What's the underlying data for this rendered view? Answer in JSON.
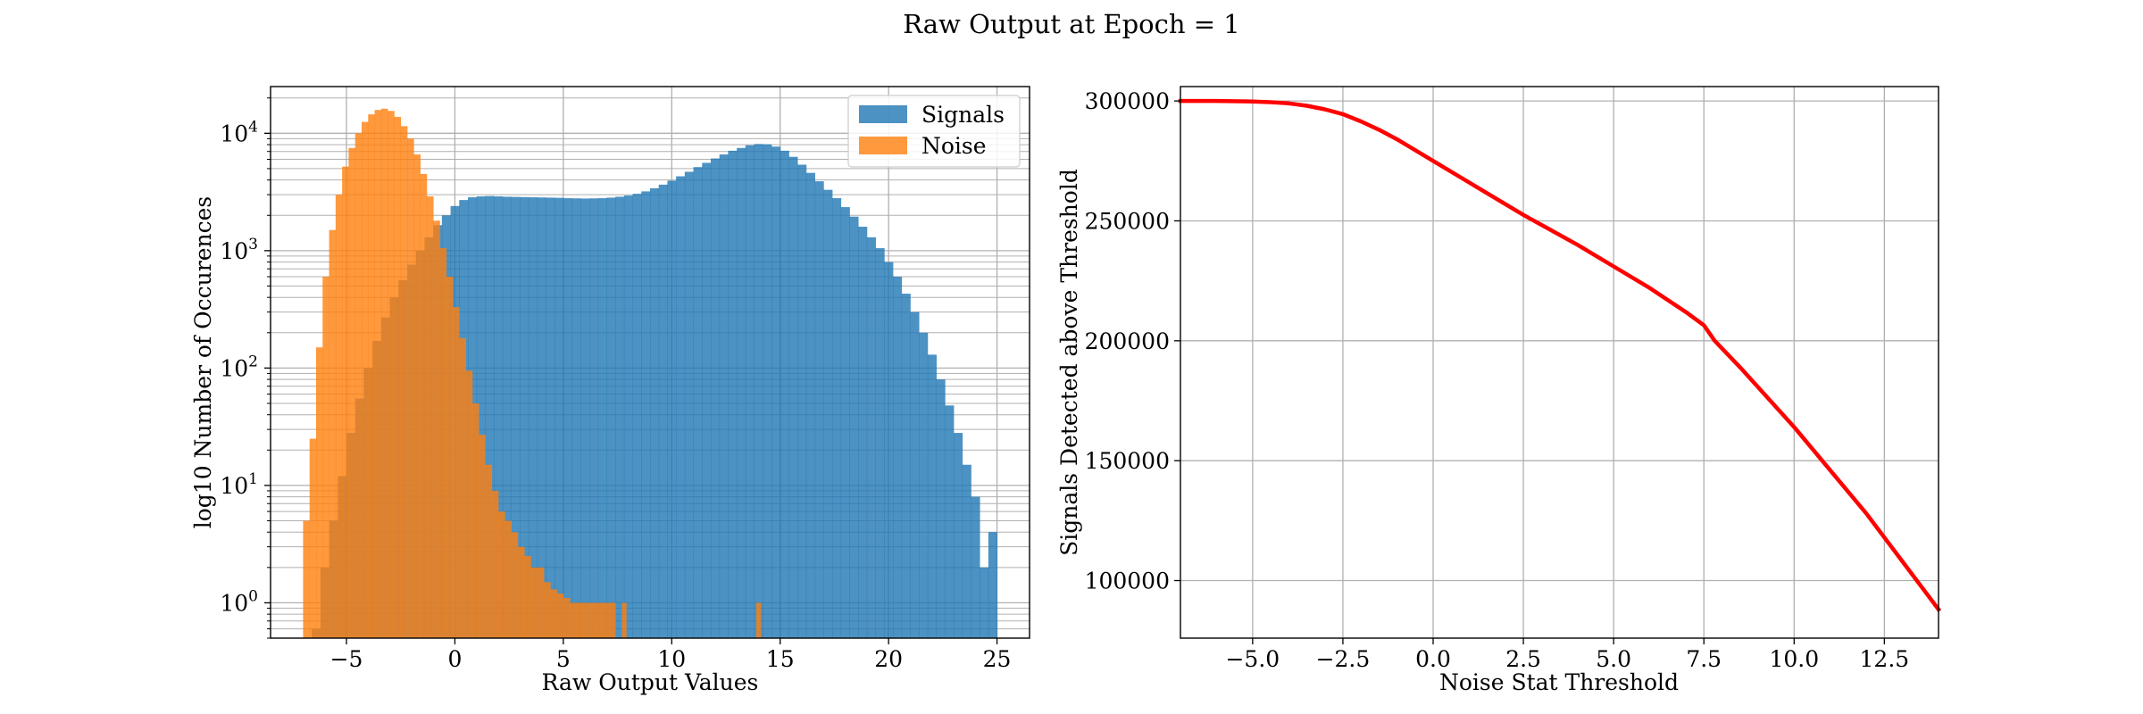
{
  "figure": {
    "title": "Raw Output at Epoch = 1"
  },
  "chart_data": [
    {
      "type": "histogram",
      "xlabel": "Raw Output Values",
      "ylabel": "log10 Number of Occurences",
      "yscale": "log",
      "xlim": [
        -8.5,
        26.5
      ],
      "ylim": [
        0.5,
        25000
      ],
      "xticks": [
        -5,
        0,
        5,
        10,
        15,
        20,
        25
      ],
      "xtick_labels": [
        "−5",
        "0",
        "5",
        "10",
        "15",
        "20",
        "25"
      ],
      "yticks": [
        1,
        10,
        100,
        1000,
        10000
      ],
      "ytick_labels": [
        [
          "10",
          "0"
        ],
        [
          "10",
          "1"
        ],
        [
          "10",
          "2"
        ],
        [
          "10",
          "3"
        ],
        [
          "10",
          "4"
        ]
      ],
      "grid": true,
      "legend": {
        "placement": "upper right"
      },
      "series": [
        {
          "name": "Signals",
          "color": "#1f77b4",
          "alpha": 0.8,
          "bins": [
            [
              -6.6,
              -6.2,
              0.6
            ],
            [
              -6.2,
              -5.8,
              2
            ],
            [
              -5.8,
              -5.4,
              5
            ],
            [
              -5.4,
              -5.0,
              12
            ],
            [
              -5.0,
              -4.6,
              28
            ],
            [
              -4.6,
              -4.2,
              55
            ],
            [
              -4.2,
              -3.8,
              100
            ],
            [
              -3.8,
              -3.4,
              170
            ],
            [
              -3.4,
              -3.0,
              270
            ],
            [
              -3.0,
              -2.6,
              400
            ],
            [
              -2.6,
              -2.2,
              560
            ],
            [
              -2.2,
              -1.8,
              760
            ],
            [
              -1.8,
              -1.4,
              1000
            ],
            [
              -1.4,
              -1.0,
              1300
            ],
            [
              -1.0,
              -0.6,
              1650
            ],
            [
              -0.6,
              -0.2,
              2000
            ],
            [
              -0.2,
              0.2,
              2400
            ],
            [
              0.2,
              0.6,
              2700
            ],
            [
              0.6,
              1.0,
              2850
            ],
            [
              1.0,
              1.4,
              2900
            ],
            [
              1.4,
              1.8,
              2920
            ],
            [
              1.8,
              2.2,
              2900
            ],
            [
              2.2,
              2.6,
              2880
            ],
            [
              2.6,
              3.0,
              2870
            ],
            [
              3.0,
              3.4,
              2860
            ],
            [
              3.4,
              3.8,
              2850
            ],
            [
              3.8,
              4.2,
              2840
            ],
            [
              4.2,
              4.6,
              2830
            ],
            [
              4.6,
              5.0,
              2820
            ],
            [
              5.0,
              5.4,
              2800
            ],
            [
              5.4,
              5.8,
              2790
            ],
            [
              5.8,
              6.2,
              2780
            ],
            [
              6.2,
              6.6,
              2790
            ],
            [
              6.6,
              7.0,
              2800
            ],
            [
              7.0,
              7.4,
              2830
            ],
            [
              7.4,
              7.8,
              2880
            ],
            [
              7.8,
              8.2,
              2950
            ],
            [
              8.2,
              8.6,
              3050
            ],
            [
              8.6,
              9.0,
              3200
            ],
            [
              9.0,
              9.4,
              3400
            ],
            [
              9.4,
              9.8,
              3650
            ],
            [
              9.8,
              10.2,
              3950
            ],
            [
              10.2,
              10.6,
              4300
            ],
            [
              10.6,
              11.0,
              4700
            ],
            [
              11.0,
              11.4,
              5150
            ],
            [
              11.4,
              11.8,
              5600
            ],
            [
              11.8,
              12.2,
              6100
            ],
            [
              12.2,
              12.6,
              6600
            ],
            [
              12.6,
              13.0,
              7100
            ],
            [
              13.0,
              13.4,
              7500
            ],
            [
              13.4,
              13.8,
              7900
            ],
            [
              13.8,
              14.2,
              8100
            ],
            [
              14.2,
              14.6,
              8050
            ],
            [
              14.6,
              15.0,
              7700
            ],
            [
              15.0,
              15.4,
              7100
            ],
            [
              15.4,
              15.8,
              6300
            ],
            [
              15.8,
              16.2,
              5400
            ],
            [
              16.2,
              16.6,
              4600
            ],
            [
              16.6,
              17.0,
              3900
            ],
            [
              17.0,
              17.4,
              3300
            ],
            [
              17.4,
              17.8,
              2800
            ],
            [
              17.8,
              18.2,
              2350
            ],
            [
              18.2,
              18.6,
              1950
            ],
            [
              18.6,
              19.0,
              1600
            ],
            [
              19.0,
              19.4,
              1300
            ],
            [
              19.4,
              19.8,
              1050
            ],
            [
              19.8,
              20.2,
              800
            ],
            [
              20.2,
              20.6,
              600
            ],
            [
              20.6,
              21.0,
              430
            ],
            [
              21.0,
              21.4,
              300
            ],
            [
              21.4,
              21.8,
              200
            ],
            [
              21.8,
              22.2,
              130
            ],
            [
              22.2,
              22.6,
              80
            ],
            [
              22.6,
              23.0,
              48
            ],
            [
              23.0,
              23.4,
              28
            ],
            [
              23.4,
              23.8,
              15
            ],
            [
              23.8,
              24.2,
              8
            ],
            [
              24.2,
              24.6,
              2
            ],
            [
              24.6,
              25.0,
              4
            ]
          ]
        },
        {
          "name": "Noise",
          "color": "#ff7f0e",
          "alpha": 0.8,
          "bins": [
            [
              -7.0,
              -6.7,
              5
            ],
            [
              -6.7,
              -6.4,
              25
            ],
            [
              -6.4,
              -6.1,
              150
            ],
            [
              -6.1,
              -5.8,
              600
            ],
            [
              -5.8,
              -5.5,
              1500
            ],
            [
              -5.5,
              -5.2,
              3000
            ],
            [
              -5.2,
              -4.9,
              5200
            ],
            [
              -4.9,
              -4.6,
              7500
            ],
            [
              -4.6,
              -4.3,
              10000
            ],
            [
              -4.3,
              -4.0,
              12500
            ],
            [
              -4.0,
              -3.7,
              14500
            ],
            [
              -3.7,
              -3.4,
              15800
            ],
            [
              -3.4,
              -3.1,
              16200
            ],
            [
              -3.1,
              -2.8,
              15500
            ],
            [
              -2.8,
              -2.5,
              13800
            ],
            [
              -2.5,
              -2.2,
              11500
            ],
            [
              -2.2,
              -1.9,
              9000
            ],
            [
              -1.9,
              -1.6,
              6600
            ],
            [
              -1.6,
              -1.3,
              4500
            ],
            [
              -1.3,
              -1.0,
              2900
            ],
            [
              -1.0,
              -0.7,
              1800
            ],
            [
              -0.7,
              -0.4,
              1050
            ],
            [
              -0.4,
              -0.1,
              600
            ],
            [
              -0.1,
              0.2,
              330
            ],
            [
              0.2,
              0.5,
              180
            ],
            [
              0.5,
              0.8,
              95
            ],
            [
              0.8,
              1.1,
              50
            ],
            [
              1.1,
              1.4,
              27
            ],
            [
              1.4,
              1.7,
              15
            ],
            [
              1.7,
              2.0,
              9
            ],
            [
              2.0,
              2.3,
              6
            ],
            [
              2.3,
              2.6,
              5
            ],
            [
              2.6,
              2.9,
              4
            ],
            [
              2.9,
              3.2,
              3
            ],
            [
              3.2,
              3.5,
              2.5
            ],
            [
              3.5,
              3.8,
              2
            ],
            [
              3.8,
              4.1,
              2
            ],
            [
              4.1,
              4.4,
              1.5
            ],
            [
              4.4,
              4.7,
              1.3
            ],
            [
              4.7,
              5.0,
              1.2
            ],
            [
              5.0,
              5.3,
              1.1
            ],
            [
              5.3,
              5.6,
              1
            ],
            [
              5.6,
              5.9,
              1
            ],
            [
              5.9,
              6.2,
              1
            ],
            [
              6.2,
              6.5,
              1
            ],
            [
              6.5,
              6.8,
              1
            ],
            [
              6.8,
              7.1,
              1
            ],
            [
              7.1,
              7.4,
              1
            ],
            [
              7.7,
              7.9,
              1
            ],
            [
              13.9,
              14.1,
              1
            ]
          ]
        }
      ]
    },
    {
      "type": "line",
      "xlabel": "Noise Stat Threshold",
      "ylabel": "Signals Detected above Threshold",
      "xlim": [
        -7,
        14
      ],
      "ylim": [
        76000,
        306000
      ],
      "xticks": [
        -5.0,
        -2.5,
        0.0,
        2.5,
        5.0,
        7.5,
        10.0,
        12.5
      ],
      "xtick_labels": [
        "−5.0",
        "−2.5",
        "0.0",
        "2.5",
        "5.0",
        "7.5",
        "10.0",
        "12.5"
      ],
      "yticks": [
        100000,
        150000,
        200000,
        250000,
        300000
      ],
      "ytick_labels": [
        "100000",
        "150000",
        "200000",
        "250000",
        "300000"
      ],
      "grid": true,
      "series": [
        {
          "color": "#ff0000",
          "x": [
            -7,
            -6,
            -5,
            -4.5,
            -4,
            -3.5,
            -3,
            -2.5,
            -2,
            -1.5,
            -1,
            -0.5,
            0,
            1,
            2.5,
            4,
            5,
            6,
            7,
            7.5,
            7.8,
            8.5,
            10,
            12,
            14
          ],
          "y": [
            300000,
            300000,
            299800,
            299500,
            299000,
            298000,
            296500,
            294500,
            291500,
            288000,
            284000,
            279500,
            275000,
            266000,
            252500,
            240000,
            231000,
            222000,
            212000,
            206500,
            200000,
            189000,
            164000,
            128000,
            88000
          ]
        }
      ]
    }
  ]
}
